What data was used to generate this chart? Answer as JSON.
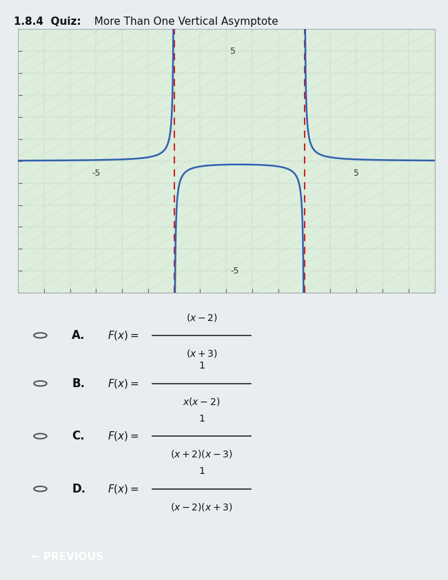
{
  "title_bold": "1.8.4  Quiz:",
  "title_normal": "  More Than One Vertical Asymptote",
  "graph_bg_color": "#ddeedd",
  "asymptotes": [
    -2,
    3
  ],
  "xlim": [
    -8,
    8
  ],
  "ylim": [
    -6,
    6
  ],
  "x_tick_label_neg": -5,
  "x_tick_label_pos": 5,
  "y_tick_label_neg": -5,
  "y_tick_label_pos": 5,
  "curve_color": "#3060b0",
  "asymptote_color": "#cc2222",
  "axis_color": "#404040",
  "outer_bg": "#e8eef0",
  "graph_border_color": "#aaaaaa",
  "button_color": "#3a9e9e",
  "button_text": "← PREVIOUS",
  "options": [
    {
      "label": "A",
      "num": "(x - 2)",
      "den": "(x + 3)"
    },
    {
      "label": "B",
      "num": "1",
      "den": "x(x - 2)"
    },
    {
      "label": "C",
      "num": "1",
      "den": "(x + 2)(x - 3)"
    },
    {
      "label": "D",
      "num": "1",
      "den": "(x - 2)(x + 3)"
    }
  ]
}
